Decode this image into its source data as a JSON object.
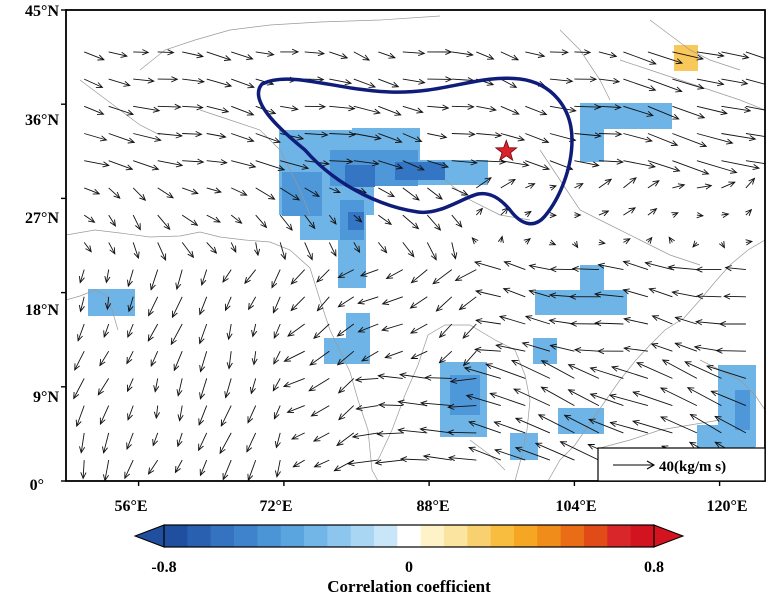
{
  "map": {
    "lat_labels": [
      "45°N",
      "36°N",
      "27°N",
      "18°N",
      "9°N",
      "0°"
    ],
    "lon_labels": [
      "56°E",
      "72°E",
      "88°E",
      "104°E",
      "120°E"
    ],
    "extent": {
      "lon": [
        48,
        125
      ],
      "lat": [
        0,
        45
      ]
    },
    "vector_key": {
      "label": "40(kg/m s)",
      "magnitude": 40
    },
    "star_marker": {
      "lon": 96.5,
      "lat": 31.5,
      "color": "#d9202b"
    },
    "contour_color": "#0f1d7a",
    "land_outline_color": "#9a9a9a"
  },
  "colorbar": {
    "title": "Correlation coefficient",
    "tick_labels": [
      "-0.8",
      "0",
      "0.8"
    ],
    "range": [
      -0.8,
      0.8
    ],
    "colors": [
      "#1f4f9e",
      "#2a60b0",
      "#3572c0",
      "#3f83cc",
      "#4b94d6",
      "#5aa4df",
      "#72b6e8",
      "#8cc5ee",
      "#a9d6f3",
      "#c8e6f8",
      "#ffffff",
      "#fdf2c8",
      "#fbe3a0",
      "#f9d070",
      "#f8bd3e",
      "#f5a623",
      "#f08c1a",
      "#e96c17",
      "#e14b17",
      "#d9262a",
      "#d3131f"
    ]
  }
}
